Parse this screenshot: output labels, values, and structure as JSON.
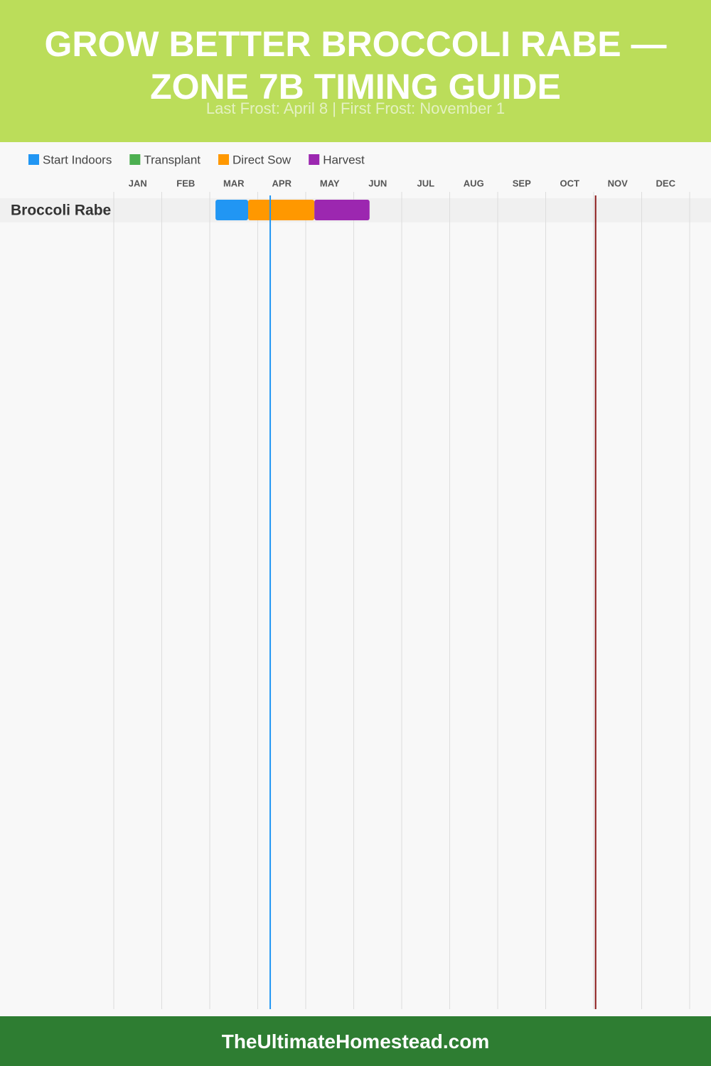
{
  "chart_data": {
    "type": "gantt",
    "title": "GROW BETTER BROCCOLI RABE — ZONE 7B TIMING GUIDE",
    "subtitle": "Last Frost: April 8 | First Frost: November 1",
    "categories": [
      "Broccoli Rabe"
    ],
    "xlim": [
      0,
      12
    ],
    "xticks": [
      {
        "value": 0.5,
        "label": "JAN"
      },
      {
        "value": 1.5,
        "label": "FEB"
      },
      {
        "value": 2.5,
        "label": "MAR"
      },
      {
        "value": 3.5,
        "label": "APR"
      },
      {
        "value": 4.5,
        "label": "MAY"
      },
      {
        "value": 5.5,
        "label": "JUN"
      },
      {
        "value": 6.5,
        "label": "JUL"
      },
      {
        "value": 7.5,
        "label": "AUG"
      },
      {
        "value": 8.5,
        "label": "SEP"
      },
      {
        "value": 9.5,
        "label": "OCT"
      },
      {
        "value": 10.5,
        "label": "NOV"
      },
      {
        "value": 11.5,
        "label": "DEC"
      }
    ],
    "xgrid": [
      0,
      1,
      2,
      3,
      4,
      5,
      6,
      7,
      8,
      9,
      10,
      11,
      12
    ],
    "series": [
      {
        "name": "Start Indoors",
        "color": "#2196f3",
        "values": [
          [
            2.12,
            2.8
          ]
        ]
      },
      {
        "name": "Transplant",
        "color": "#4caf50",
        "values": [
          null
        ]
      },
      {
        "name": "Direct Sow",
        "color": "#ff9800",
        "values": [
          [
            2.8,
            4.18
          ]
        ]
      },
      {
        "name": "Harvest",
        "color": "#9c27b0",
        "values": [
          [
            4.18,
            5.33
          ]
        ]
      }
    ],
    "frost_lines": [
      {
        "value": 3.26,
        "color": "#2196f3"
      },
      {
        "value": 10.04,
        "color": "#8b1a1a"
      }
    ]
  },
  "footer": "TheUltimateHomestead.com"
}
